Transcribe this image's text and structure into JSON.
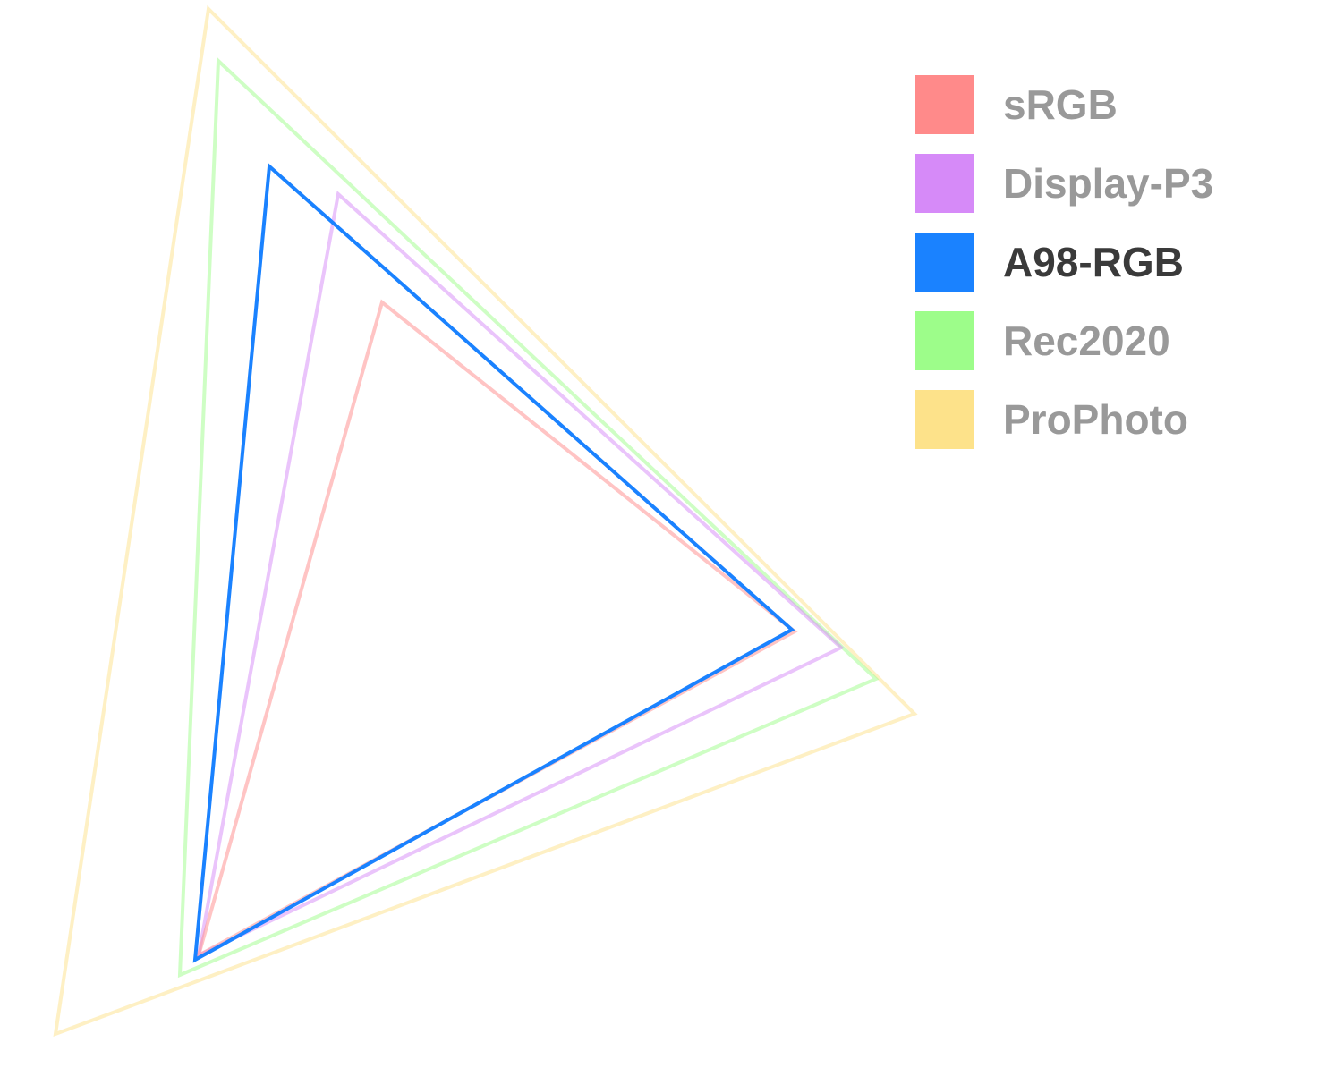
{
  "legend": {
    "items": [
      {
        "label": "sRGB",
        "color": "#ff8a8a",
        "active": false
      },
      {
        "label": "Display-P3",
        "color": "#d68af8",
        "active": false
      },
      {
        "label": "A98-RGB",
        "color": "#1a82ff",
        "active": true
      },
      {
        "label": "Rec2020",
        "color": "#9dfd8a",
        "active": false
      },
      {
        "label": "ProPhoto",
        "color": "#fde28a",
        "active": false
      }
    ]
  }
}
